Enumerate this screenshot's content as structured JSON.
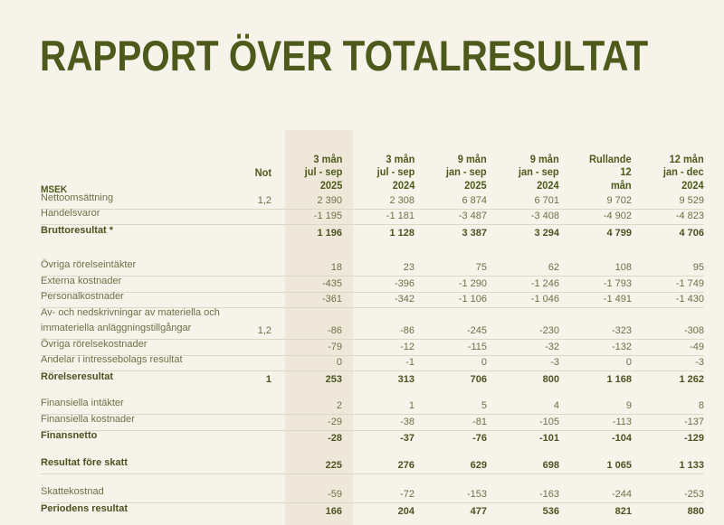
{
  "title": "RAPPORT ÖVER TOTALRESULTAT",
  "header": {
    "unit": "MSEK",
    "note": "Not",
    "columns": [
      [
        "3 mån",
        "jul - sep",
        "2025"
      ],
      [
        "3 mån",
        "jul - sep",
        "2024"
      ],
      [
        "9 mån",
        "jan - sep",
        "2025"
      ],
      [
        "9 mån",
        "jan - sep",
        "2024"
      ],
      [
        "Rullande",
        "12",
        "mån"
      ],
      [
        "12 mån",
        "jan - dec",
        "2024"
      ]
    ]
  },
  "groups": [
    {
      "rows": [
        {
          "label": "Nettoomsättning",
          "note": "1,2",
          "values": [
            "2 390",
            "2 308",
            "6 874",
            "6 701",
            "9 702",
            "9 529"
          ],
          "line": true
        },
        {
          "label": "Handelsvaror",
          "note": "",
          "values": [
            "-1 195",
            "-1 181",
            "-3 487",
            "-3 408",
            "-4 902",
            "-4 823"
          ],
          "line": true
        },
        {
          "label": "Bruttoresultat *",
          "note": "",
          "values": [
            "1 196",
            "1 128",
            "3 387",
            "3 294",
            "4 799",
            "4 706"
          ],
          "bold": true
        }
      ]
    },
    {
      "rows": [
        {
          "label": "Övriga rörelseintäkter",
          "note": "",
          "values": [
            "18",
            "23",
            "75",
            "62",
            "108",
            "95"
          ],
          "line": true
        },
        {
          "label": "Externa kostnader",
          "note": "",
          "values": [
            "-435",
            "-396",
            "-1 290",
            "-1 246",
            "-1 793",
            "-1 749"
          ],
          "line": true
        },
        {
          "label": "Personalkostnader",
          "note": "",
          "values": [
            "-361",
            "-342",
            "-1 106",
            "-1 046",
            "-1 491",
            "-1 430"
          ],
          "line": true
        },
        {
          "label": "Av- och nedskrivningar av materiella och immateriella anläggningstillgångar",
          "note": "1,2",
          "values": [
            "-86",
            "-86",
            "-245",
            "-230",
            "-323",
            "-308"
          ],
          "line": true,
          "two": true
        },
        {
          "label": "Övriga rörelsekostnader",
          "note": "",
          "values": [
            "-79",
            "-12",
            "-115",
            "-32",
            "-132",
            "-49"
          ],
          "line": true
        },
        {
          "label": "Andelar i intressebolags resultat",
          "note": "",
          "values": [
            "0",
            "-1",
            "0",
            "-3",
            "0",
            "-3"
          ],
          "line": true
        },
        {
          "label": "Rörelseresultat",
          "note": "1",
          "values": [
            "253",
            "313",
            "706",
            "800",
            "1 168",
            "1 262"
          ],
          "bold": true
        }
      ]
    },
    {
      "rows": [
        {
          "label": "Finansiella intäkter",
          "note": "",
          "values": [
            "2",
            "1",
            "5",
            "4",
            "9",
            "8"
          ],
          "line": true
        },
        {
          "label": "Finansiella kostnader",
          "note": "",
          "values": [
            "-29",
            "-38",
            "-81",
            "-105",
            "-113",
            "-137"
          ],
          "line": true
        },
        {
          "label": "Finansnetto",
          "note": "",
          "values": [
            "-28",
            "-37",
            "-76",
            "-101",
            "-104",
            "-129"
          ],
          "bold": true
        }
      ]
    },
    {
      "rows": [
        {
          "label": "Resultat före skatt",
          "note": "",
          "values": [
            "225",
            "276",
            "629",
            "698",
            "1 065",
            "1 133"
          ],
          "bold": true,
          "line": true
        }
      ]
    },
    {
      "rows": [
        {
          "label": "Skattekostnad",
          "note": "",
          "values": [
            "-59",
            "-72",
            "-153",
            "-163",
            "-244",
            "-253"
          ],
          "line": true
        },
        {
          "label": "Periodens resultat",
          "note": "",
          "values": [
            "166",
            "204",
            "477",
            "536",
            "821",
            "880"
          ],
          "bold": true
        }
      ]
    }
  ]
}
